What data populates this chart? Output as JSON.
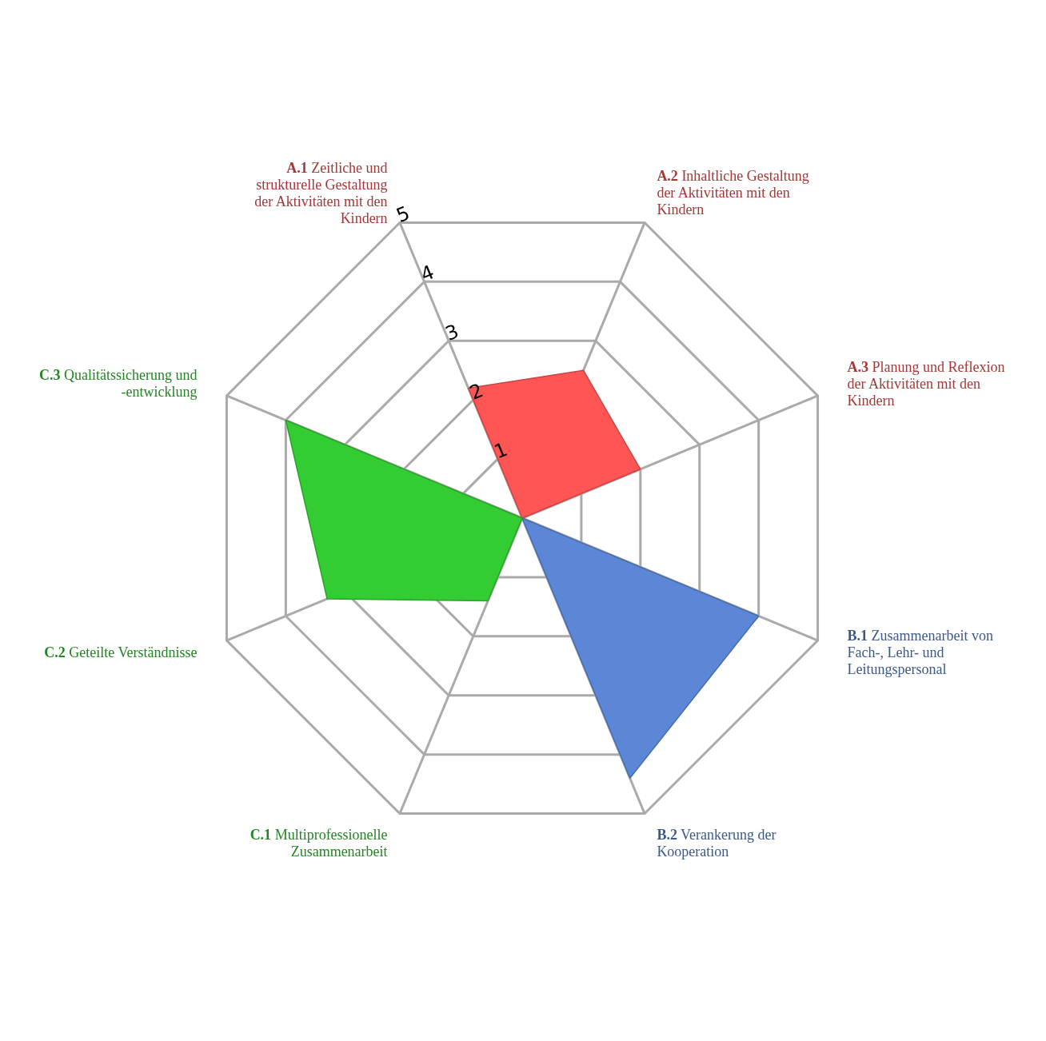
{
  "chart_data": {
    "type": "radar",
    "categories": [
      "A.1 Zeitliche und strukturelle Gestaltung der Aktivitäten mit den Kindern",
      "A.2 Inhaltliche Gestaltung der Aktivitäten mit den Kindern",
      "A.3 Planung und Reflexion der Aktivitäten mit den Kindern",
      "B.1 Zusammenarbeit von Fach-, Lehr- und Leitungspersonal",
      "B.2 Verankerung der Kooperation",
      "C.1 Multiprofessionelle Zusammenarbeit",
      "C.2 Geteilte Verständnisse",
      "C.3 Qualitätssicherung und -entwicklung"
    ],
    "series": [
      {
        "color": "#ff5555",
        "values": [
          2.2,
          2.5,
          2.0,
          null,
          null,
          null,
          null,
          null
        ]
      },
      {
        "color": "#5b87d6",
        "values": [
          null,
          null,
          null,
          4.0,
          4.4,
          null,
          null,
          null
        ]
      },
      {
        "color": "#33cc33",
        "values": [
          null,
          null,
          null,
          null,
          null,
          1.4,
          3.3,
          4.0
        ]
      }
    ],
    "ylim": [
      0,
      5
    ],
    "yticks": [
      1,
      2,
      3,
      4,
      5
    ],
    "grid": true
  }
}
